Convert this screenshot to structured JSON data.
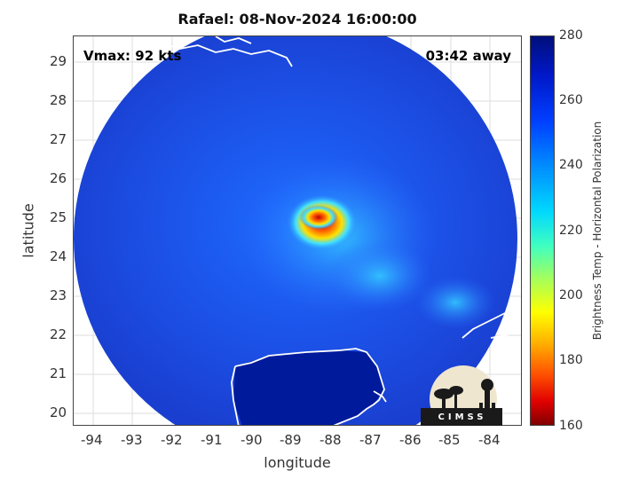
{
  "title": "Rafael: 08-Nov-2024 16:00:00",
  "vmax_text": "Vmax: 92 kts",
  "away_text": "03:42 away",
  "xaxis": {
    "label": "longitude",
    "ticks": [
      "-94",
      "-93",
      "-92",
      "-91",
      "-90",
      "-89",
      "-88",
      "-87",
      "-86",
      "-85",
      "-84"
    ]
  },
  "yaxis": {
    "label": "latitude",
    "ticks": [
      "29",
      "28",
      "27",
      "26",
      "25",
      "24",
      "23",
      "22",
      "21",
      "20"
    ]
  },
  "colorbar": {
    "label": "Brightness Temp - Horizontal Polarization",
    "ticks": [
      "280",
      "260",
      "240",
      "220",
      "200",
      "180",
      "160"
    ],
    "min": 160,
    "max": 280
  },
  "logo_text": "CIMSS",
  "colors": {
    "swath_base": "#1f4fe0",
    "warm_core": "#e01010",
    "land": "#001a9c",
    "coast": "#ffffff"
  }
}
